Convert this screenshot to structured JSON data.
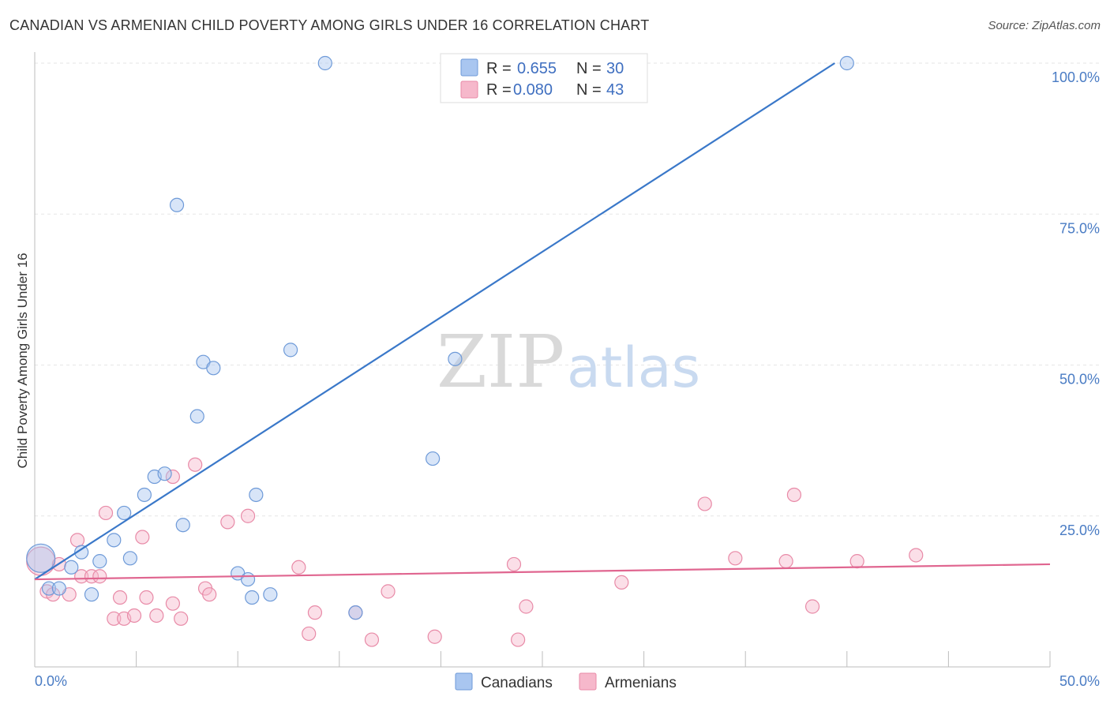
{
  "title": "CANADIAN VS ARMENIAN CHILD POVERTY AMONG GIRLS UNDER 16 CORRELATION CHART",
  "source": "Source: ZipAtlas.com",
  "watermark": {
    "zip": "ZIP",
    "atlas": "atlas"
  },
  "legend_top": [
    {
      "r_label": "R =",
      "r_value": "0.655",
      "n_label": "N =",
      "n_value": "30",
      "color": "#a9c6f0",
      "stroke": "#6e9ad8"
    },
    {
      "r_label": "R =",
      "r_value": "0.080",
      "n_label": "N =",
      "n_value": "43",
      "color": "#f6b8cb",
      "stroke": "#e88aa7"
    }
  ],
  "chart_data": {
    "type": "scatter",
    "title": "CANADIAN VS ARMENIAN CHILD POVERTY AMONG GIRLS UNDER 16 CORRELATION CHART",
    "xlabel": "",
    "ylabel": "Child Poverty Among Girls Under 16",
    "xlim": [
      0,
      50
    ],
    "ylim": [
      0,
      102
    ],
    "x_tick_labels": [
      "0.0%",
      "50.0%"
    ],
    "y_ticks": [
      25,
      50,
      75,
      100
    ],
    "y_tick_labels": [
      "25.0%",
      "50.0%",
      "75.0%",
      "100.0%"
    ],
    "grid": true,
    "legend_position": "bottom-center",
    "series": [
      {
        "name": "Canadians",
        "color": "#a9c6f0",
        "stroke": "#6e9ad8",
        "line_color": "#3a78c9",
        "trend": {
          "x": [
            0,
            39.4
          ],
          "y": [
            14.5,
            100
          ]
        },
        "points": [
          [
            0.3,
            18
          ],
          [
            0.7,
            13
          ],
          [
            1.2,
            13
          ],
          [
            1.8,
            16.5
          ],
          [
            2.3,
            19
          ],
          [
            2.8,
            12
          ],
          [
            3.2,
            17.5
          ],
          [
            3.9,
            21
          ],
          [
            4.4,
            25.5
          ],
          [
            4.7,
            18
          ],
          [
            5.4,
            28.5
          ],
          [
            5.9,
            31.5
          ],
          [
            6.4,
            32
          ],
          [
            7.0,
            76.5
          ],
          [
            7.3,
            23.5
          ],
          [
            8.0,
            41.5
          ],
          [
            8.3,
            50.5
          ],
          [
            8.8,
            49.5
          ],
          [
            10.0,
            15.5
          ],
          [
            10.5,
            14.5
          ],
          [
            10.7,
            11.5
          ],
          [
            10.9,
            28.5
          ],
          [
            11.6,
            12
          ],
          [
            12.6,
            52.5
          ],
          [
            14.3,
            100
          ],
          [
            15.8,
            9
          ],
          [
            19.6,
            34.5
          ],
          [
            20.7,
            51
          ],
          [
            21.3,
            100
          ],
          [
            40.0,
            100
          ]
        ]
      },
      {
        "name": "Armenians",
        "color": "#f6b8cb",
        "stroke": "#e88aa7",
        "line_color": "#e06690",
        "trend": {
          "x": [
            0,
            50
          ],
          "y": [
            14.5,
            17
          ]
        },
        "points": [
          [
            0.3,
            17.5
          ],
          [
            0.6,
            12.5
          ],
          [
            0.9,
            12
          ],
          [
            1.2,
            17
          ],
          [
            1.7,
            12
          ],
          [
            2.1,
            21
          ],
          [
            2.3,
            15
          ],
          [
            2.8,
            15
          ],
          [
            3.2,
            15
          ],
          [
            3.5,
            25.5
          ],
          [
            3.9,
            8
          ],
          [
            4.2,
            11.5
          ],
          [
            4.4,
            8
          ],
          [
            4.9,
            8.5
          ],
          [
            5.3,
            21.5
          ],
          [
            5.5,
            11.5
          ],
          [
            6.0,
            8.5
          ],
          [
            6.8,
            10.5
          ],
          [
            6.8,
            31.5
          ],
          [
            7.2,
            8
          ],
          [
            7.9,
            33.5
          ],
          [
            8.4,
            13
          ],
          [
            8.6,
            12
          ],
          [
            9.5,
            24
          ],
          [
            10.5,
            25
          ],
          [
            13.0,
            16.5
          ],
          [
            13.5,
            5.5
          ],
          [
            13.8,
            9
          ],
          [
            15.8,
            9
          ],
          [
            16.6,
            4.5
          ],
          [
            17.4,
            12.5
          ],
          [
            19.7,
            5
          ],
          [
            23.6,
            17
          ],
          [
            23.8,
            4.5
          ],
          [
            24.2,
            10
          ],
          [
            28.9,
            14
          ],
          [
            33.0,
            27
          ],
          [
            34.5,
            18
          ],
          [
            37.0,
            17.5
          ],
          [
            37.4,
            28.5
          ],
          [
            38.3,
            10
          ],
          [
            40.5,
            17.5
          ],
          [
            43.4,
            18.5
          ]
        ]
      }
    ]
  }
}
